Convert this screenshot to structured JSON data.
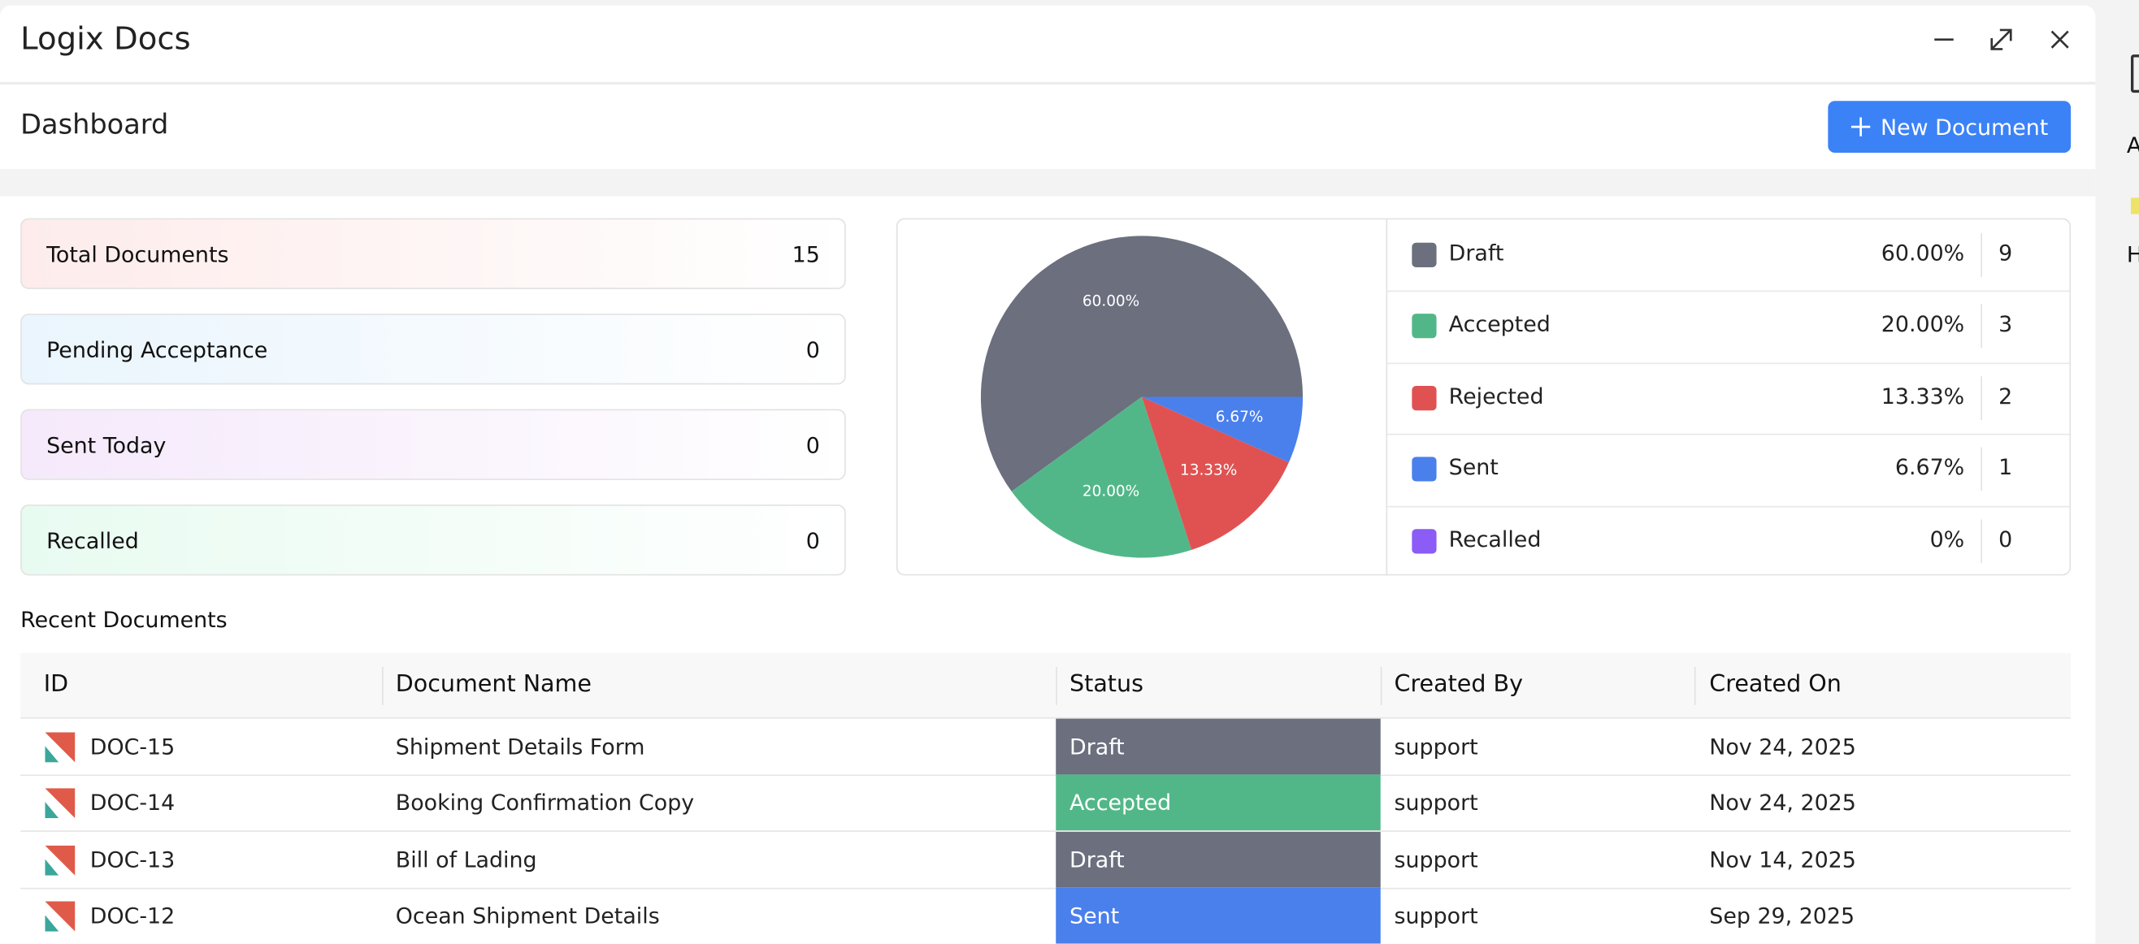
{
  "header": {
    "title": "Logix Docs"
  },
  "toolbar": {
    "title": "Dashboard",
    "button": "New Document"
  },
  "stats": [
    {
      "label": "Total Documents",
      "value": 15
    },
    {
      "label": "Pending Acceptance",
      "value": 0
    },
    {
      "label": "Sent Today",
      "value": 0
    },
    {
      "label": "Recalled",
      "value": 0
    }
  ],
  "chart_data": {
    "type": "pie",
    "categories": [
      "Draft",
      "Accepted",
      "Rejected",
      "Sent",
      "Recalled"
    ],
    "values": [
      60,
      20,
      13.33,
      6.67,
      0
    ],
    "value_labels": [
      "60.00%",
      "20.00%",
      "13.33%",
      "6.67%",
      "0%"
    ],
    "counts": [
      9,
      3,
      2,
      1,
      0
    ],
    "colors": [
      "#6b6f7e",
      "#52b788",
      "#e05252",
      "#4a80ec",
      "#8b5cf6"
    ]
  },
  "table": {
    "title": "Recent Documents",
    "columns": [
      "ID",
      "Document Name",
      "Status",
      "Created By",
      "Created On"
    ],
    "rows": [
      [
        "DOC-15",
        "Shipment Details Form",
        "Draft",
        "support",
        "Nov 24, 2025"
      ],
      [
        "DOC-14",
        "Booking Confirmation Copy",
        "Accepted",
        "support",
        "Nov 24, 2025"
      ],
      [
        "DOC-13",
        "Bill of Lading",
        "Draft",
        "support",
        "Nov 14, 2025"
      ],
      [
        "DOC-12",
        "Ocean Shipment Details",
        "Sent",
        "support",
        "Sep 29, 2025"
      ]
    ]
  },
  "desktop": {
    "items": [
      "A",
      "H"
    ]
  }
}
